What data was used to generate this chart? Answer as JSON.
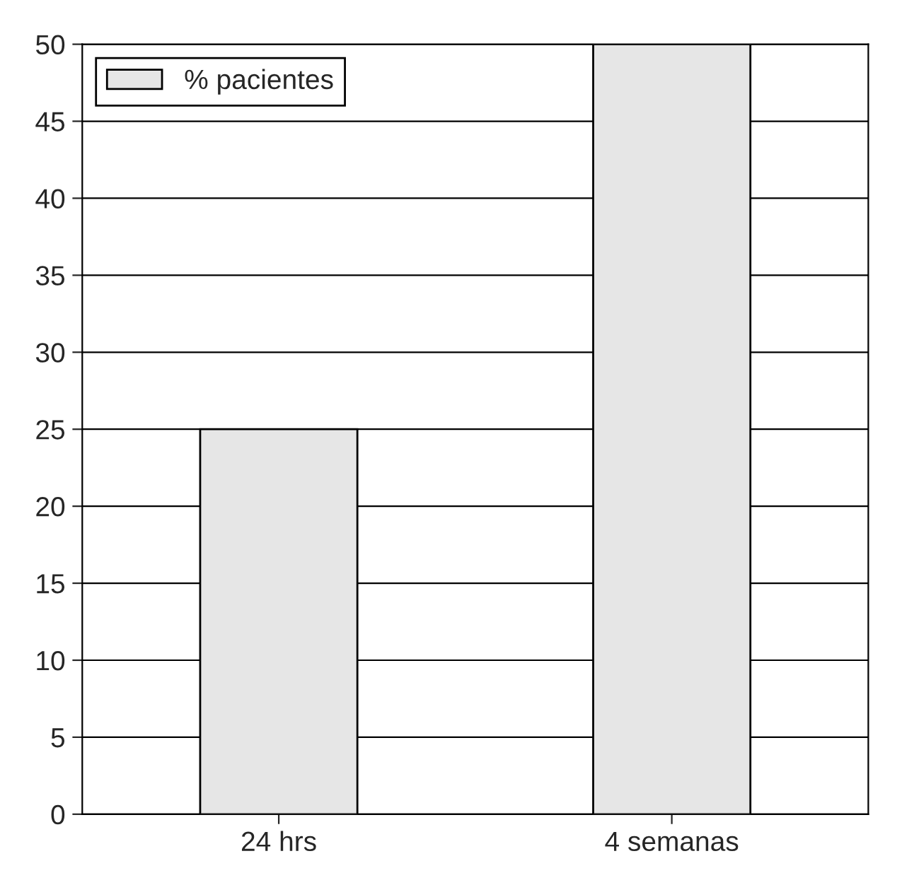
{
  "chart_data": {
    "type": "bar",
    "categories": [
      "24 hrs",
      "4 semanas"
    ],
    "series": [
      {
        "name": "% pacientes",
        "color": "#e6e6e6",
        "values": [
          25,
          50
        ]
      }
    ],
    "ylim": [
      0,
      50
    ],
    "yticks": [
      0,
      5,
      10,
      15,
      20,
      25,
      30,
      35,
      40,
      45,
      50
    ],
    "grid": "y",
    "legend": "top left"
  }
}
